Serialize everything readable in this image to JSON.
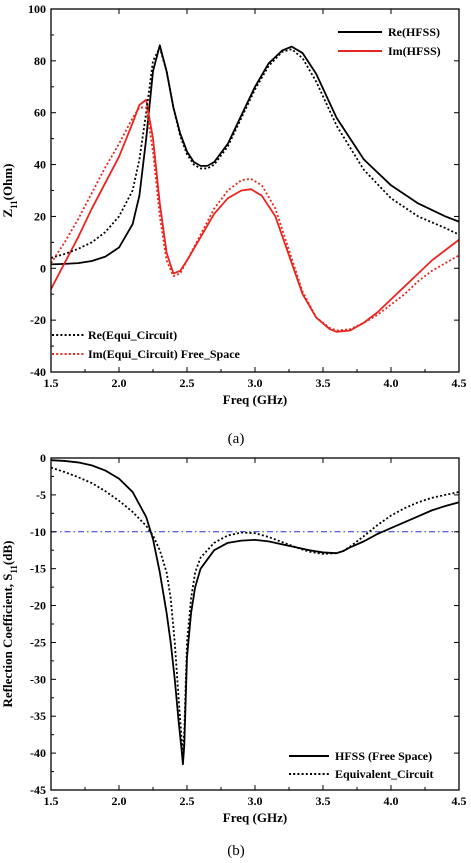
{
  "chart_data": [
    {
      "type": "line",
      "caption": "(a)",
      "xlabel": "Freq (GHz)",
      "ylabel_main": "Z",
      "ylabel_sub": "11",
      "ylabel_rest": "(Ohm)",
      "xlim": [
        1.5,
        4.5
      ],
      "ylim": [
        -40,
        100
      ],
      "xticks": [
        1.5,
        2.0,
        2.5,
        3.0,
        3.5,
        4.0,
        4.5
      ],
      "xtick_labels": [
        "1.5",
        "2.0",
        "2.5",
        "3.0",
        "3.5",
        "4.0",
        "4.5"
      ],
      "yticks": [
        -40,
        -20,
        0,
        20,
        40,
        60,
        80,
        100
      ],
      "ytick_labels": [
        "-40",
        "-20",
        "0",
        "20",
        "40",
        "60",
        "80",
        "100"
      ],
      "grid": false,
      "legends": [
        {
          "placement": "top-right",
          "entries": [
            0,
            1
          ]
        },
        {
          "placement": "bottom-left",
          "entries": [
            2,
            3
          ]
        }
      ],
      "series": [
        {
          "name": "Re(HFSS)",
          "color": "#000000",
          "style": "solid",
          "x": [
            1.5,
            1.6,
            1.7,
            1.8,
            1.9,
            2.0,
            2.1,
            2.15,
            2.2,
            2.25,
            2.3,
            2.35,
            2.4,
            2.45,
            2.5,
            2.55,
            2.6,
            2.65,
            2.7,
            2.8,
            2.9,
            3.0,
            3.1,
            3.2,
            3.27,
            3.35,
            3.45,
            3.6,
            3.8,
            4.0,
            4.2,
            4.4,
            4.5
          ],
          "y": [
            1.5,
            1.7,
            2,
            2.8,
            4.5,
            8,
            17,
            28,
            50,
            76,
            86,
            76,
            62,
            52,
            45,
            41,
            39.5,
            39.5,
            41,
            48,
            59,
            70,
            79,
            84,
            85.5,
            83,
            75,
            58,
            42,
            32,
            25,
            20,
            18
          ]
        },
        {
          "name": "Im(HFSS)",
          "color": "#e8251f",
          "style": "solid",
          "x": [
            1.5,
            1.6,
            1.7,
            1.8,
            1.9,
            2.0,
            2.1,
            2.15,
            2.2,
            2.25,
            2.3,
            2.35,
            2.4,
            2.45,
            2.5,
            2.6,
            2.7,
            2.8,
            2.9,
            2.97,
            3.05,
            3.15,
            3.25,
            3.35,
            3.45,
            3.55,
            3.6,
            3.7,
            3.8,
            3.9,
            4.0,
            4.1,
            4.2,
            4.3,
            4.4,
            4.5
          ],
          "y": [
            -8,
            2,
            12,
            23,
            33,
            43,
            56,
            63,
            65,
            50,
            25,
            6,
            -2,
            -1,
            3,
            12,
            21,
            27,
            30,
            30.5,
            28,
            20,
            5,
            -10,
            -19,
            -23.5,
            -24.5,
            -24,
            -21,
            -17,
            -12,
            -7,
            -2,
            3,
            7,
            11
          ]
        },
        {
          "name": "Re(Equi_Circuit)",
          "color": "#000000",
          "style": "dotted",
          "x": [
            1.5,
            1.6,
            1.7,
            1.8,
            1.9,
            2.0,
            2.1,
            2.15,
            2.2,
            2.25,
            2.3,
            2.35,
            2.4,
            2.45,
            2.5,
            2.55,
            2.6,
            2.65,
            2.7,
            2.8,
            2.9,
            3.0,
            3.1,
            3.2,
            3.27,
            3.35,
            3.45,
            3.6,
            3.8,
            4.0,
            4.2,
            4.4,
            4.5
          ],
          "y": [
            4,
            5.5,
            7.5,
            10,
            14,
            20,
            30,
            42,
            60,
            80,
            85,
            76,
            62,
            51,
            44,
            40,
            38.5,
            38.5,
            40,
            47,
            58,
            69,
            78,
            83.5,
            84.5,
            81,
            72,
            55,
            38,
            27,
            20,
            15.5,
            13
          ]
        },
        {
          "name": "Im(Equi_Circuit) Free_Space",
          "color": "#e8251f",
          "style": "dotted",
          "x": [
            1.5,
            1.6,
            1.7,
            1.8,
            1.9,
            2.0,
            2.1,
            2.15,
            2.2,
            2.25,
            2.3,
            2.35,
            2.4,
            2.45,
            2.5,
            2.6,
            2.7,
            2.8,
            2.9,
            2.97,
            3.05,
            3.15,
            3.25,
            3.35,
            3.45,
            3.55,
            3.6,
            3.7,
            3.8,
            3.9,
            4.0,
            4.1,
            4.2,
            4.3,
            4.4,
            4.5
          ],
          "y": [
            2,
            10,
            19,
            29,
            39,
            48,
            58,
            62,
            62,
            45,
            20,
            3,
            -3,
            -2,
            3,
            13,
            23,
            30,
            34,
            34.5,
            32,
            23,
            7,
            -9,
            -19,
            -23,
            -24,
            -23.5,
            -21,
            -18,
            -14,
            -10,
            -5,
            -1,
            2,
            5
          ]
        }
      ]
    },
    {
      "type": "line",
      "caption": "(b)",
      "xlabel": "Freq (GHz)",
      "ylabel_main": "Reflection Coefficient, S",
      "ylabel_sub": "11",
      "ylabel_rest": "(dB)",
      "xlim": [
        1.5,
        4.5
      ],
      "ylim": [
        -45,
        0
      ],
      "xticks": [
        1.5,
        2.0,
        2.5,
        3.0,
        3.5,
        4.0,
        4.5
      ],
      "xtick_labels": [
        "1.5",
        "2.0",
        "2.5",
        "3.0",
        "3.5",
        "4.0",
        "4.5"
      ],
      "yticks": [
        0,
        -5,
        -10,
        -15,
        -20,
        -25,
        -30,
        -35,
        -40,
        -45
      ],
      "ytick_labels": [
        "0",
        "-5",
        "-10",
        "-15",
        "-20",
        "-25",
        "-30",
        "-35",
        "-40",
        "-45"
      ],
      "grid": false,
      "reference_line": {
        "y": -10,
        "color": "#2b2bd8",
        "style": "dash-dot"
      },
      "legends": [
        {
          "placement": "bottom-right",
          "entries": [
            0,
            1
          ]
        }
      ],
      "series": [
        {
          "name": "HFSS (Free Space)",
          "color": "#000000",
          "style": "solid",
          "x": [
            1.5,
            1.6,
            1.7,
            1.8,
            1.9,
            2.0,
            2.1,
            2.2,
            2.25,
            2.3,
            2.35,
            2.38,
            2.41,
            2.44,
            2.46,
            2.47,
            2.48,
            2.49,
            2.5,
            2.53,
            2.56,
            2.6,
            2.7,
            2.8,
            2.9,
            3.0,
            3.1,
            3.2,
            3.3,
            3.4,
            3.5,
            3.6,
            3.65,
            3.7,
            3.8,
            3.9,
            4.0,
            4.1,
            4.2,
            4.3,
            4.4,
            4.5
          ],
          "y": [
            -0.3,
            -0.4,
            -0.6,
            -1,
            -1.7,
            -2.8,
            -4.6,
            -8,
            -11,
            -15.5,
            -21,
            -25,
            -30,
            -36,
            -39.5,
            -41.5,
            -39,
            -33,
            -27,
            -21,
            -17.5,
            -15,
            -12.5,
            -11.5,
            -11.2,
            -11.1,
            -11.3,
            -11.7,
            -12.1,
            -12.5,
            -12.8,
            -12.9,
            -12.6,
            -12.1,
            -11.3,
            -10.3,
            -9.5,
            -8.7,
            -7.9,
            -7.1,
            -6.5,
            -6
          ]
        },
        {
          "name": "Equivalent_Circuit",
          "color": "#000000",
          "style": "dotted",
          "x": [
            1.5,
            1.6,
            1.7,
            1.8,
            1.9,
            2.0,
            2.1,
            2.2,
            2.25,
            2.3,
            2.35,
            2.38,
            2.41,
            2.44,
            2.46,
            2.47,
            2.48,
            2.49,
            2.5,
            2.53,
            2.56,
            2.6,
            2.7,
            2.8,
            2.9,
            3.0,
            3.1,
            3.2,
            3.3,
            3.4,
            3.5,
            3.6,
            3.65,
            3.7,
            3.8,
            3.9,
            4.0,
            4.1,
            4.2,
            4.3,
            4.4,
            4.5
          ],
          "y": [
            -1.3,
            -1.9,
            -2.6,
            -3.4,
            -4.5,
            -5.8,
            -7.3,
            -9.2,
            -10.5,
            -12.5,
            -15.5,
            -19,
            -25,
            -33,
            -38,
            -40,
            -37,
            -31,
            -25,
            -19,
            -15.5,
            -13.5,
            -11.5,
            -10.5,
            -10.1,
            -10.2,
            -10.7,
            -11.4,
            -12.1,
            -12.7,
            -13.0,
            -12.9,
            -12.6,
            -12,
            -10.6,
            -9.1,
            -7.8,
            -6.8,
            -6.0,
            -5.4,
            -5.0,
            -4.6
          ]
        }
      ]
    }
  ]
}
